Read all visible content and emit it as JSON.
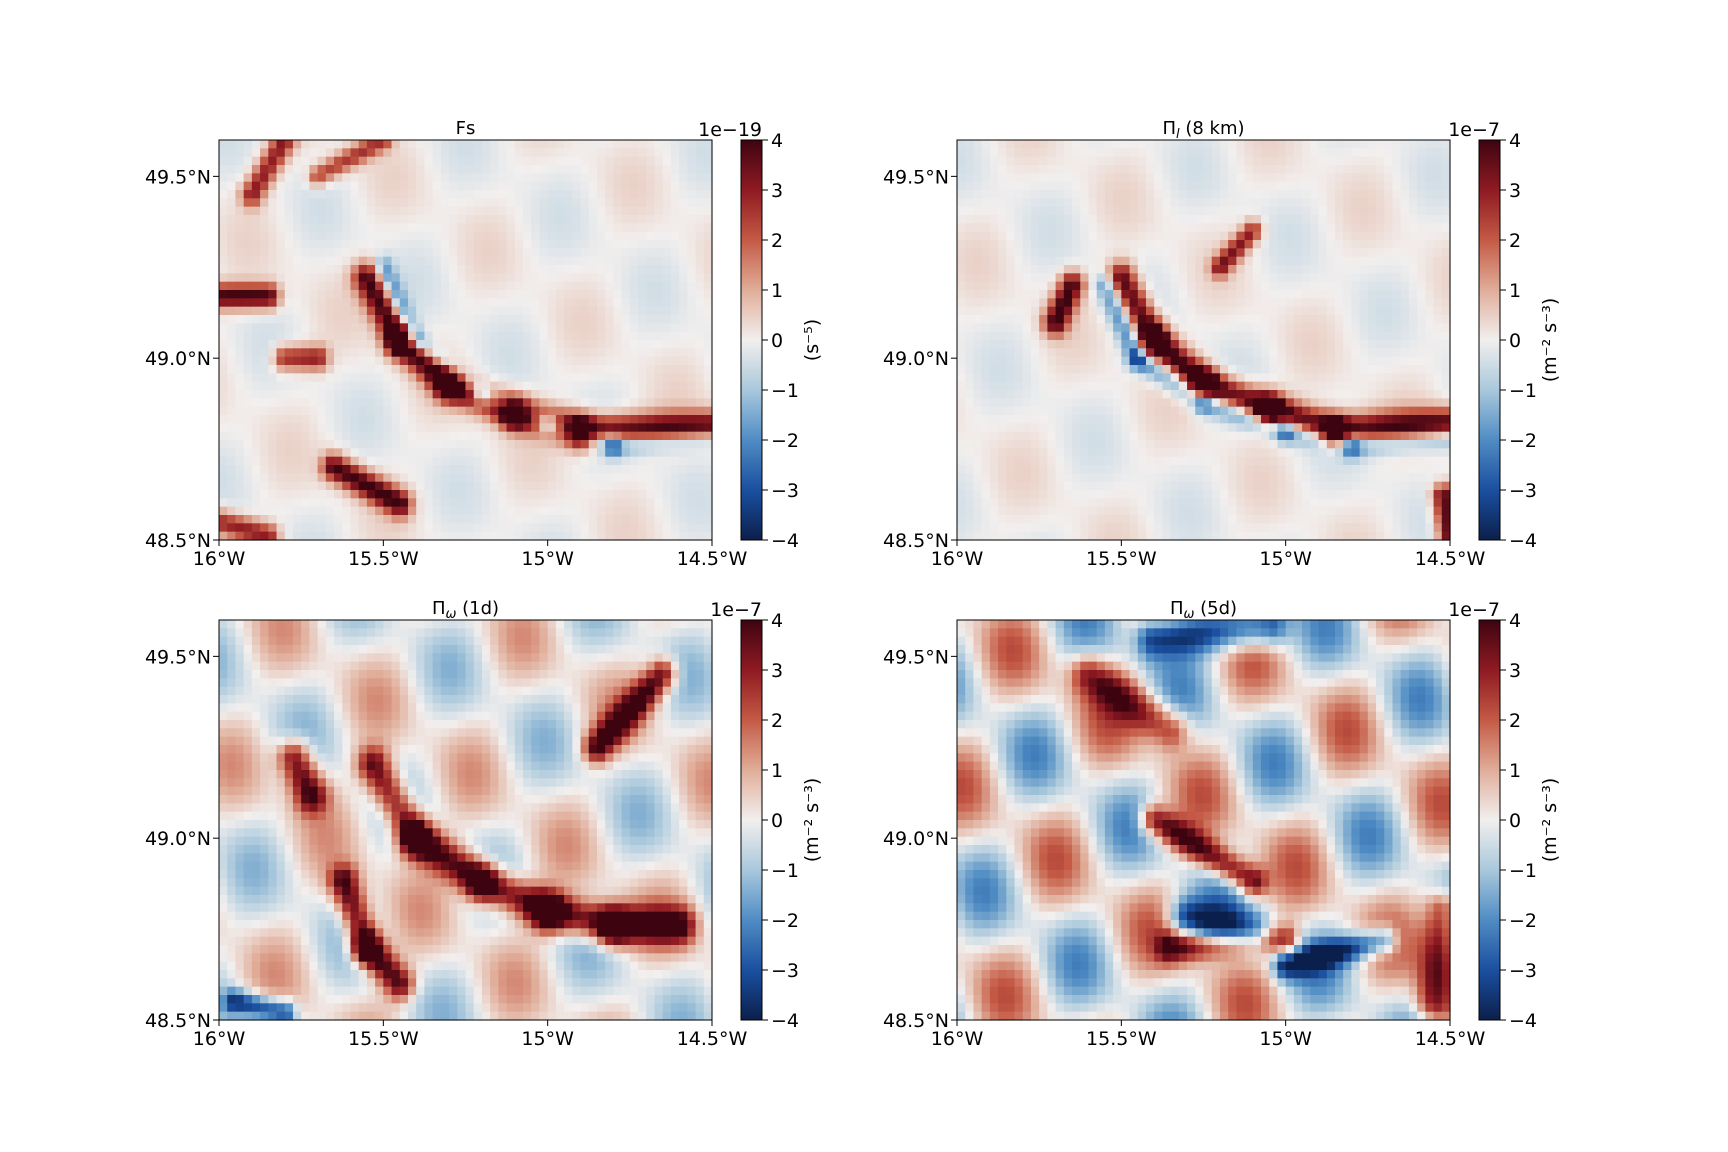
{
  "figure": {
    "colormap": [
      "#0b1f4c",
      "#1b4fa0",
      "#4f8cc3",
      "#a9c8dc",
      "#f2efee",
      "#e0ad99",
      "#c45a45",
      "#8f1a22",
      "#3d0410"
    ]
  },
  "chart_data": [
    {
      "type": "heatmap",
      "title": "Fs",
      "colorbar_label": "(s⁻⁵)",
      "colorbar_exponent": "1e−19",
      "clim": [
        -4,
        4
      ],
      "colorbar_ticks": [
        "−4",
        "−3",
        "−2",
        "−1",
        "0",
        "1",
        "2",
        "3",
        "4"
      ],
      "xlim": [
        -16,
        -14.5
      ],
      "ylim": [
        48.5,
        49.6
      ],
      "xticks": [
        "16°W",
        "15.5°W",
        "15°W",
        "14.5°W"
      ],
      "yticks": [
        "48.5°N",
        "49.0°N",
        "49.5°N"
      ],
      "features": [
        {
          "path": [
            [
              -15.55,
              49.22
            ],
            [
              -15.45,
              49.05
            ],
            [
              -15.3,
              48.93
            ],
            [
              -15.1,
              48.85
            ],
            [
              -14.9,
              48.8
            ],
            [
              -14.5,
              48.81
            ]
          ],
          "value": 4.0,
          "width": 0.015
        },
        {
          "path": [
            [
              -15.5,
              49.25
            ],
            [
              -15.4,
              49.05
            ],
            [
              -15.2,
              48.9
            ],
            [
              -15.0,
              48.82
            ],
            [
              -14.8,
              48.76
            ],
            [
              -14.5,
              48.78
            ]
          ],
          "value": -2.0,
          "width": 0.01
        },
        {
          "path": [
            [
              -16.0,
              49.17
            ],
            [
              -15.85,
              49.17
            ]
          ],
          "value": 4.0,
          "width": 0.012
        },
        {
          "path": [
            [
              -15.8,
              49.0
            ],
            [
              -15.7,
              49.0
            ]
          ],
          "value": 3.0,
          "width": 0.012
        },
        {
          "path": [
            [
              -15.65,
              48.7
            ],
            [
              -15.45,
              48.6
            ]
          ],
          "value": 4.0,
          "width": 0.013
        },
        {
          "path": [
            [
              -16.0,
              48.55
            ],
            [
              -15.85,
              48.51
            ]
          ],
          "value": 3.0,
          "width": 0.012
        },
        {
          "path": [
            [
              -15.9,
              49.45
            ],
            [
              -15.8,
              49.6
            ]
          ],
          "value": 3.0,
          "width": 0.012
        },
        {
          "path": [
            [
              -15.7,
              49.5
            ],
            [
              -15.5,
              49.6
            ]
          ],
          "value": 2.5,
          "width": 0.01
        }
      ]
    },
    {
      "type": "heatmap",
      "title": "Π",
      "title_sub": "l",
      "title_suffix": " (8 km)",
      "colorbar_label": "(m⁻² s⁻³)",
      "colorbar_exponent": "1e−7",
      "clim": [
        -4,
        4
      ],
      "colorbar_ticks": [
        "−4",
        "−3",
        "−2",
        "−1",
        "0",
        "1",
        "2",
        "3",
        "4"
      ],
      "xlim": [
        -16,
        -14.5
      ],
      "ylim": [
        48.5,
        49.6
      ],
      "xticks": [
        "16°W",
        "15.5°W",
        "15°W",
        "14.5°W"
      ],
      "yticks": [
        "48.5°N",
        "49.0°N",
        "49.5°N"
      ],
      "features": [
        {
          "path": [
            [
              -15.5,
              49.22
            ],
            [
              -15.4,
              49.05
            ],
            [
              -15.25,
              48.93
            ],
            [
              -15.05,
              48.86
            ],
            [
              -14.85,
              48.8
            ],
            [
              -14.5,
              48.82
            ]
          ],
          "value": 4.0,
          "width": 0.015
        },
        {
          "path": [
            [
              -15.55,
              49.2
            ],
            [
              -15.45,
              49.0
            ],
            [
              -15.25,
              48.88
            ],
            [
              -15.0,
              48.8
            ],
            [
              -14.8,
              48.76
            ],
            [
              -14.5,
              48.78
            ]
          ],
          "value": -2.0,
          "width": 0.011
        },
        {
          "path": [
            [
              -15.7,
              49.1
            ],
            [
              -15.65,
              49.2
            ]
          ],
          "value": 4.0,
          "width": 0.013
        },
        {
          "path": [
            [
              -15.2,
              49.25
            ],
            [
              -15.1,
              49.35
            ]
          ],
          "value": 3.0,
          "width": 0.01
        },
        {
          "path": [
            [
              -14.5,
              48.5
            ],
            [
              -14.52,
              48.62
            ]
          ],
          "value": 4.0,
          "width": 0.012
        }
      ]
    },
    {
      "type": "heatmap",
      "title": "Π",
      "title_sub": "ω",
      "title_suffix": " (1d)",
      "colorbar_label": "(m⁻² s⁻³)",
      "colorbar_exponent": "1e−7",
      "clim": [
        -4,
        4
      ],
      "colorbar_ticks": [
        "−4",
        "−3",
        "−2",
        "−1",
        "0",
        "1",
        "2",
        "3",
        "4"
      ],
      "xlim": [
        -16,
        -14.5
      ],
      "ylim": [
        48.5,
        49.6
      ],
      "xticks": [
        "16°W",
        "15.5°W",
        "15°W",
        "14.5°W"
      ],
      "yticks": [
        "48.5°N",
        "49.0°N",
        "49.5°N"
      ],
      "features": [
        {
          "path": [
            [
              -15.53,
              49.2
            ],
            [
              -15.4,
              49.0
            ],
            [
              -15.2,
              48.88
            ],
            [
              -15.0,
              48.8
            ],
            [
              -14.8,
              48.76
            ],
            [
              -14.6,
              48.76
            ]
          ],
          "value": 4.0,
          "width": 0.018
        },
        {
          "path": [
            [
              -15.77,
              49.22
            ],
            [
              -15.72,
              49.12
            ]
          ],
          "value": 4.0,
          "width": 0.018
        },
        {
          "path": [
            [
              -15.62,
              48.88
            ],
            [
              -15.55,
              48.7
            ],
            [
              -15.45,
              48.6
            ]
          ],
          "value": 4.0,
          "width": 0.016
        },
        {
          "path": [
            [
              -14.85,
              49.25
            ],
            [
              -14.65,
              49.45
            ]
          ],
          "value": 4.0,
          "width": 0.015
        },
        {
          "path": [
            [
              -15.95,
              48.55
            ],
            [
              -15.8,
              48.52
            ]
          ],
          "value": -3.5,
          "width": 0.012
        }
      ]
    },
    {
      "type": "heatmap",
      "title": "Π",
      "title_sub": "ω",
      "title_suffix": " (5d)",
      "colorbar_label": "(m⁻² s⁻³)",
      "colorbar_exponent": "1e−7",
      "clim": [
        -4,
        4
      ],
      "colorbar_ticks": [
        "−4",
        "−3",
        "−2",
        "−1",
        "0",
        "1",
        "2",
        "3",
        "4"
      ],
      "xlim": [
        -16,
        -14.5
      ],
      "ylim": [
        48.5,
        49.6
      ],
      "xticks": [
        "16°W",
        "15.5°W",
        "15°W",
        "14.5°W"
      ],
      "yticks": [
        "48.5°N",
        "49.0°N",
        "49.5°N"
      ],
      "features": [
        {
          "path": [
            [
              -15.4,
              49.05
            ],
            [
              -15.1,
              48.88
            ]
          ],
          "value": 4.0,
          "width": 0.015
        },
        {
          "path": [
            [
              -15.3,
              48.78
            ],
            [
              -15.1,
              48.73
            ]
          ],
          "value": -3.5,
          "width": 0.02
        },
        {
          "path": [
            [
              -15.0,
              48.65
            ],
            [
              -14.7,
              48.72
            ]
          ],
          "value": -3.5,
          "width": 0.014
        },
        {
          "path": [
            [
              -15.35,
              48.7
            ],
            [
              -15.0,
              48.72
            ]
          ],
          "value": 3.5,
          "width": 0.015
        },
        {
          "path": [
            [
              -15.4,
              49.55
            ],
            [
              -15.05,
              49.58
            ]
          ],
          "value": -3.5,
          "width": 0.02
        },
        {
          "path": [
            [
              -14.55,
              48.55
            ],
            [
              -14.52,
              48.8
            ]
          ],
          "value": 3.5,
          "width": 0.02
        },
        {
          "path": [
            [
              -15.6,
              49.45
            ],
            [
              -15.35,
              49.3
            ]
          ],
          "value": 3.0,
          "width": 0.02
        }
      ]
    }
  ]
}
